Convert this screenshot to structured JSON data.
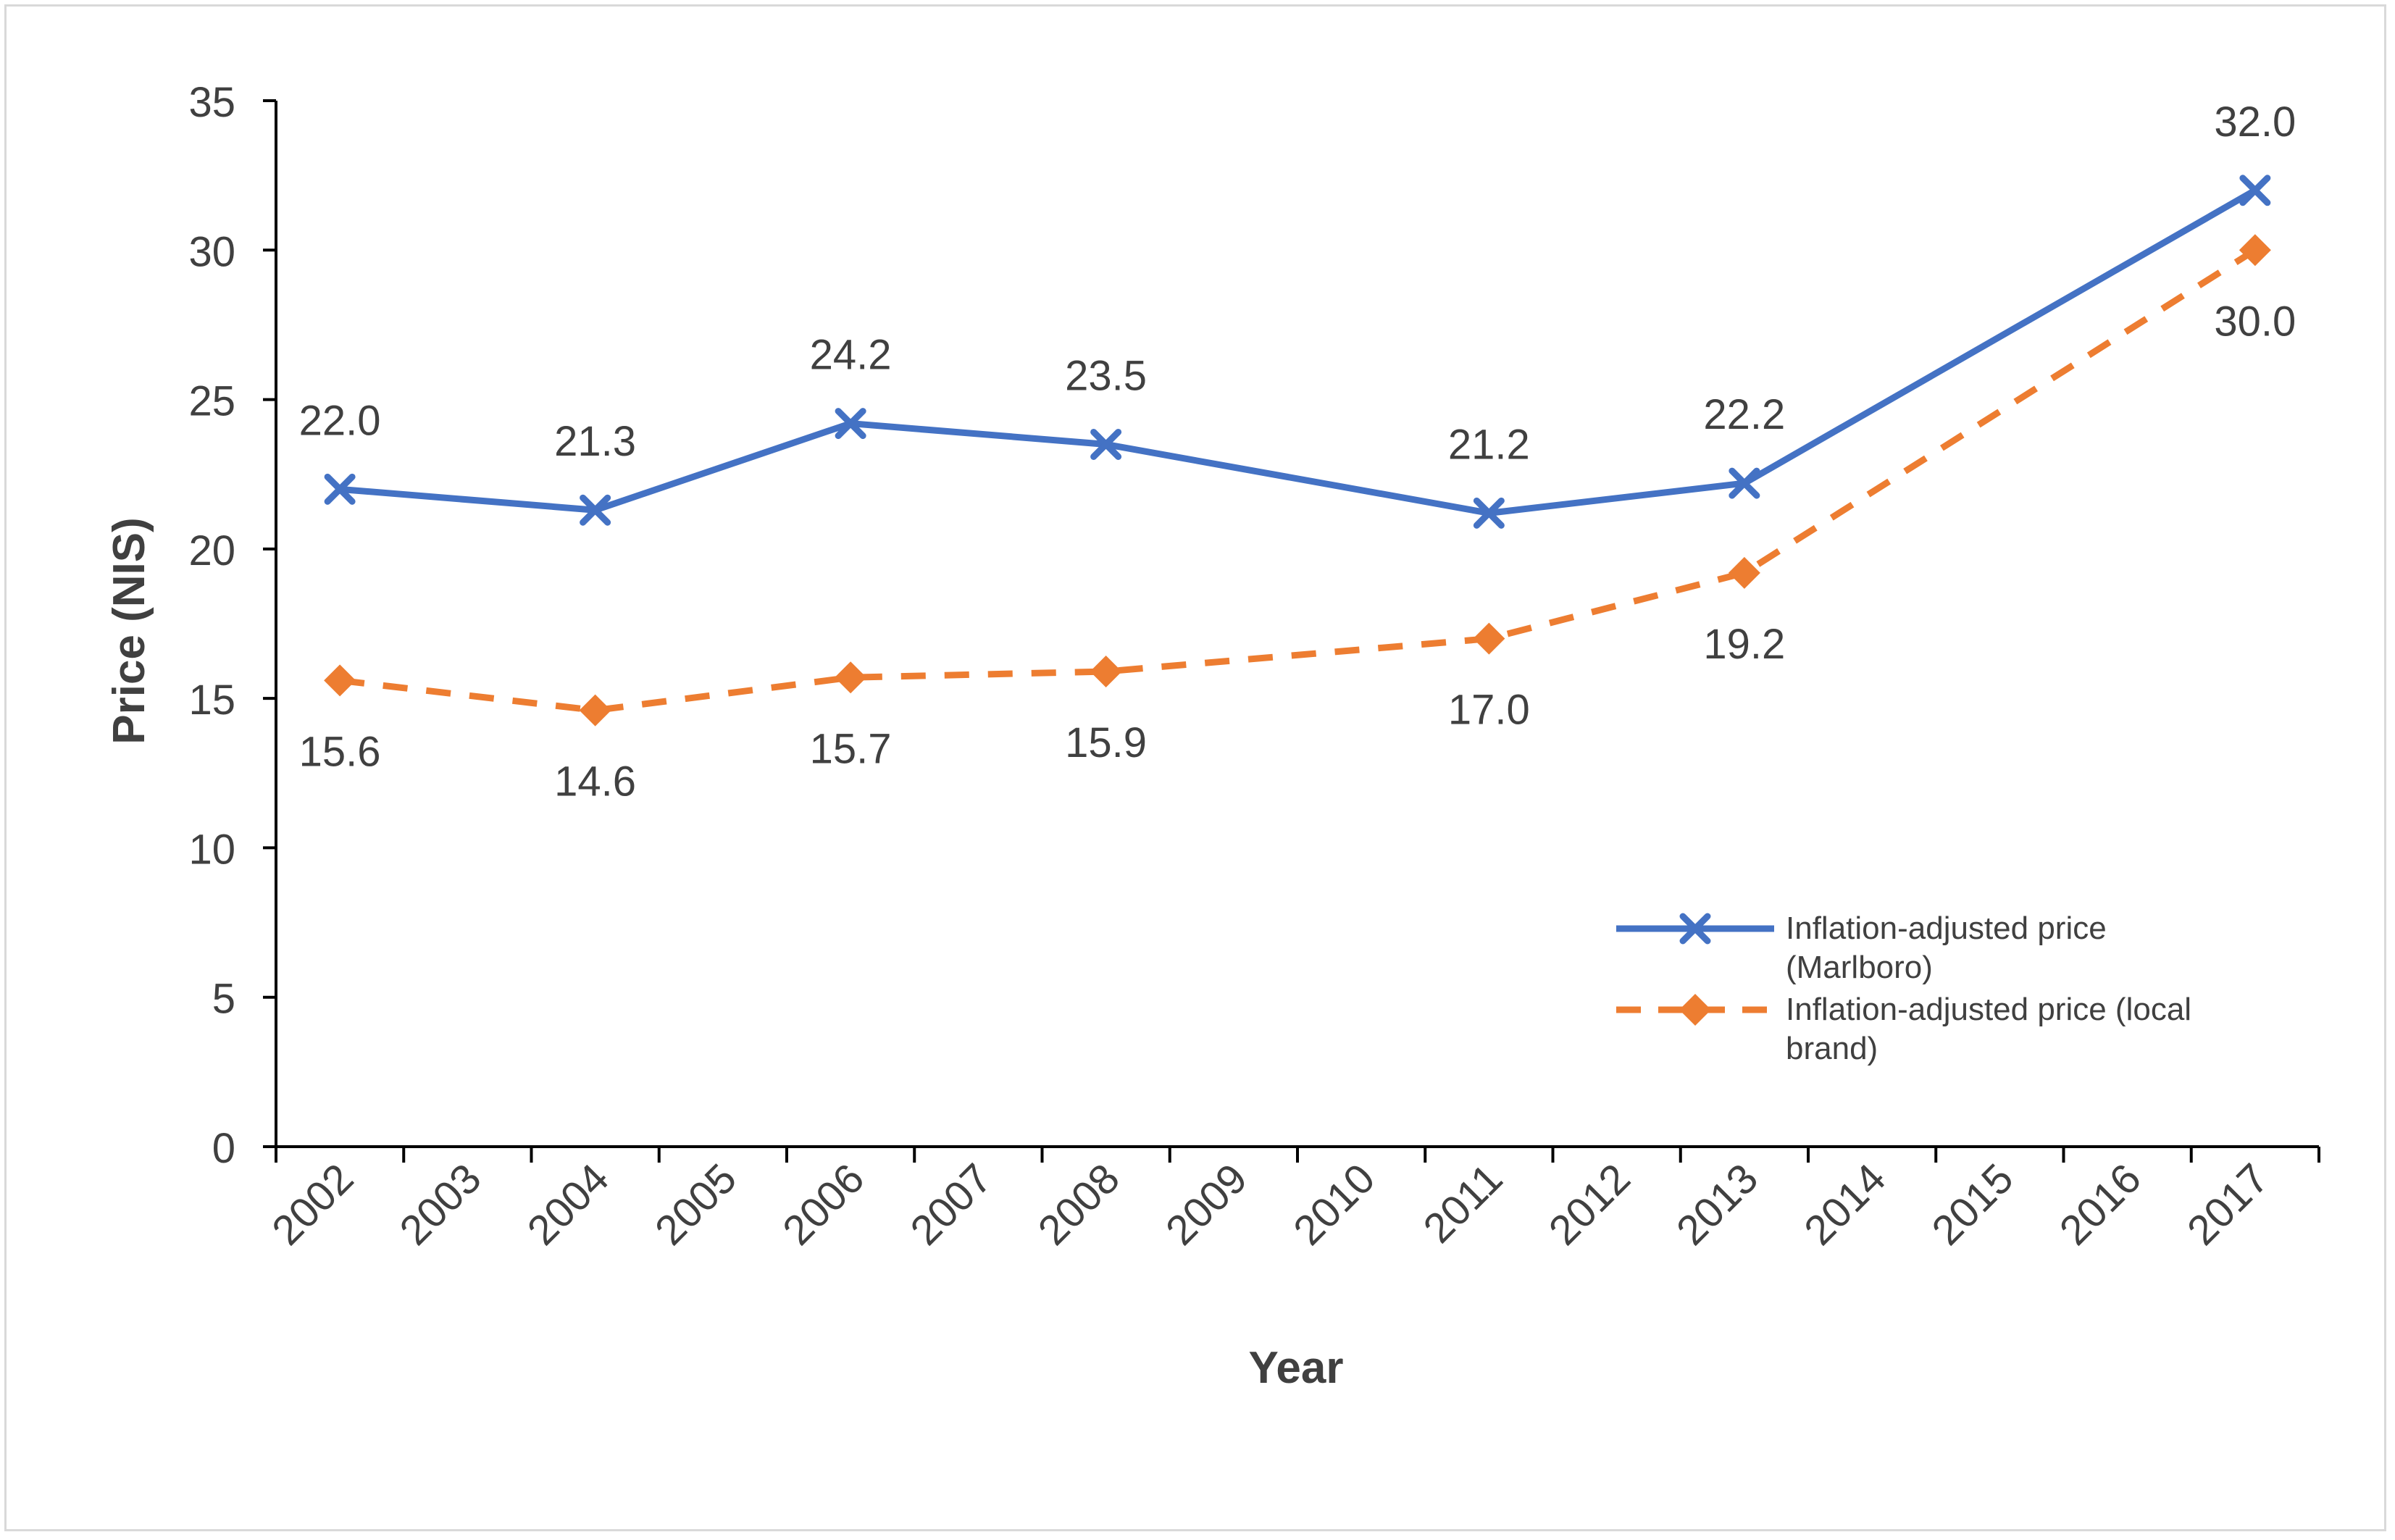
{
  "chart_data": {
    "type": "line",
    "title": "",
    "xlabel": "Year",
    "ylabel": "Price (NIS)",
    "ylim": [
      0,
      35
    ],
    "yticks": [
      0,
      5,
      10,
      15,
      20,
      25,
      30,
      35
    ],
    "categories": [
      "2002",
      "2003",
      "2004",
      "2005",
      "2006",
      "2007",
      "2008",
      "2009",
      "2010",
      "2011",
      "2012",
      "2013",
      "2014",
      "2015",
      "2016",
      "2017"
    ],
    "series": [
      {
        "name": "Inflation-adjusted price (Marlboro)",
        "color": "#4472C4",
        "line_style": "solid",
        "marker": "x",
        "label_position": "above",
        "points": [
          {
            "x": "2002",
            "y": 22.0,
            "label": "22.0"
          },
          {
            "x": "2004",
            "y": 21.3,
            "label": "21.3"
          },
          {
            "x": "2006",
            "y": 24.2,
            "label": "24.2"
          },
          {
            "x": "2008",
            "y": 23.5,
            "label": "23.5"
          },
          {
            "x": "2011",
            "y": 21.2,
            "label": "21.2"
          },
          {
            "x": "2013",
            "y": 22.2,
            "label": "22.2"
          },
          {
            "x": "2017",
            "y": 32.0,
            "label": "32.0"
          }
        ]
      },
      {
        "name": "Inflation-adjusted price (local brand)",
        "color": "#ED7D31",
        "line_style": "dashed",
        "marker": "diamond",
        "label_position": "below",
        "points": [
          {
            "x": "2002",
            "y": 15.6,
            "label": "15.6"
          },
          {
            "x": "2004",
            "y": 14.6,
            "label": "14.6"
          },
          {
            "x": "2006",
            "y": 15.7,
            "label": "15.7"
          },
          {
            "x": "2008",
            "y": 15.9,
            "label": "15.9"
          },
          {
            "x": "2011",
            "y": 17.0,
            "label": "17.0"
          },
          {
            "x": "2013",
            "y": 19.2,
            "label": "19.2"
          },
          {
            "x": "2017",
            "y": 30.0,
            "label": "30.0"
          }
        ]
      }
    ],
    "legend": {
      "placement": "lower-right",
      "entries": [
        {
          "lines": [
            "Inflation-adjusted price",
            "(Marlboro)"
          ]
        },
        {
          "lines": [
            "Inflation-adjusted price (local",
            "brand)"
          ]
        }
      ]
    },
    "grid": false
  }
}
